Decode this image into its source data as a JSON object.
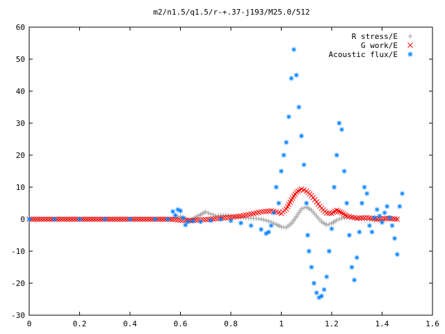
{
  "chart_data": {
    "type": "scatter",
    "title": "m2/n1.5/q1.5/r-+.37-j193/M25.0/512",
    "xlabel": "",
    "ylabel": "",
    "xlim": [
      0,
      1.6
    ],
    "ylim": [
      -30,
      60
    ],
    "xticks": [
      "0",
      "0.2",
      "0.4",
      "0.6",
      "0.8",
      "1",
      "1.2",
      "1.4",
      "1.6"
    ],
    "yticks": [
      "-30",
      "-20",
      "-10",
      "0",
      "10",
      "20",
      "30",
      "40",
      "50",
      "60"
    ],
    "grid": false,
    "legend_position": "top-right",
    "series": [
      {
        "name": "R stress/E",
        "marker": "plus",
        "color": "#a0a0a0",
        "points": [
          [
            0.0,
            0
          ],
          [
            0.1,
            0
          ],
          [
            0.2,
            0
          ],
          [
            0.3,
            0
          ],
          [
            0.4,
            0
          ],
          [
            0.5,
            0
          ],
          [
            0.56,
            0
          ],
          [
            0.58,
            0.5
          ],
          [
            0.6,
            0.9
          ],
          [
            0.62,
            0.3
          ],
          [
            0.64,
            -0.4
          ],
          [
            0.66,
            0.6
          ],
          [
            0.68,
            1.4
          ],
          [
            0.7,
            2.3
          ],
          [
            0.72,
            1.6
          ],
          [
            0.74,
            1.1
          ],
          [
            0.76,
            1.2
          ],
          [
            0.78,
            1.3
          ],
          [
            0.8,
            1.1
          ],
          [
            0.82,
            0.8
          ],
          [
            0.84,
            0.6
          ],
          [
            0.86,
            0.4
          ],
          [
            0.88,
            0.3
          ],
          [
            0.9,
            0.2
          ],
          [
            0.92,
            0
          ],
          [
            0.94,
            -0.4
          ],
          [
            0.96,
            -0.9
          ],
          [
            0.98,
            -1.6
          ],
          [
            1.0,
            -2.4
          ],
          [
            1.02,
            -2.6
          ],
          [
            1.04,
            -1.4
          ],
          [
            1.06,
            0.8
          ],
          [
            1.08,
            3.2
          ],
          [
            1.1,
            3.8
          ],
          [
            1.12,
            2.8
          ],
          [
            1.14,
            1.0
          ],
          [
            1.16,
            -0.8
          ],
          [
            1.18,
            -1.8
          ],
          [
            1.2,
            -1.3
          ],
          [
            1.22,
            -0.3
          ],
          [
            1.24,
            0.3
          ],
          [
            1.26,
            0.6
          ],
          [
            1.28,
            0.5
          ],
          [
            1.3,
            0.3
          ],
          [
            1.34,
            0
          ],
          [
            1.38,
            -0.3
          ],
          [
            1.42,
            0
          ],
          [
            1.46,
            0
          ]
        ]
      },
      {
        "name": "G work/E",
        "marker": "cross",
        "color": "#ff0000",
        "points": [
          [
            0.0,
            0
          ],
          [
            0.1,
            0
          ],
          [
            0.2,
            0
          ],
          [
            0.3,
            0
          ],
          [
            0.4,
            0
          ],
          [
            0.5,
            0
          ],
          [
            0.56,
            0
          ],
          [
            0.6,
            -0.3
          ],
          [
            0.64,
            -0.4
          ],
          [
            0.68,
            -0.2
          ],
          [
            0.72,
            0
          ],
          [
            0.76,
            0.3
          ],
          [
            0.8,
            0.6
          ],
          [
            0.84,
            1.0
          ],
          [
            0.88,
            1.6
          ],
          [
            0.92,
            2.3
          ],
          [
            0.96,
            2.6
          ],
          [
            0.98,
            2.3
          ],
          [
            1.0,
            1.8
          ],
          [
            1.02,
            3.2
          ],
          [
            1.04,
            6.0
          ],
          [
            1.06,
            8.4
          ],
          [
            1.08,
            9.4
          ],
          [
            1.1,
            8.8
          ],
          [
            1.12,
            7.4
          ],
          [
            1.14,
            5.4
          ],
          [
            1.16,
            3.4
          ],
          [
            1.18,
            1.9
          ],
          [
            1.2,
            1.8
          ],
          [
            1.22,
            2.8
          ],
          [
            1.24,
            2.0
          ],
          [
            1.26,
            1.0
          ],
          [
            1.3,
            0.3
          ],
          [
            1.34,
            0.5
          ],
          [
            1.38,
            0
          ],
          [
            1.42,
            0.3
          ],
          [
            1.46,
            0
          ]
        ]
      },
      {
        "name": "Acoustic flux/E",
        "marker": "star",
        "color": "#0080ff",
        "points": [
          [
            0.0,
            0
          ],
          [
            0.1,
            0
          ],
          [
            0.2,
            0
          ],
          [
            0.3,
            0
          ],
          [
            0.4,
            0
          ],
          [
            0.5,
            0
          ],
          [
            0.55,
            0
          ],
          [
            0.57,
            2.4
          ],
          [
            0.58,
            1.2
          ],
          [
            0.59,
            3.0
          ],
          [
            0.6,
            2.6
          ],
          [
            0.61,
            0.4
          ],
          [
            0.62,
            -1.8
          ],
          [
            0.63,
            -0.8
          ],
          [
            0.65,
            -0.6
          ],
          [
            0.68,
            -0.8
          ],
          [
            0.72,
            -0.4
          ],
          [
            0.76,
            0
          ],
          [
            0.8,
            -0.5
          ],
          [
            0.84,
            -1.2
          ],
          [
            0.88,
            -2.0
          ],
          [
            0.92,
            -3.2
          ],
          [
            0.94,
            -4.5
          ],
          [
            0.95,
            -4.0
          ],
          [
            0.96,
            -2.0
          ],
          [
            0.97,
            2.0
          ],
          [
            0.98,
            10.0
          ],
          [
            0.99,
            5.0
          ],
          [
            1.0,
            15.0
          ],
          [
            1.01,
            20.0
          ],
          [
            1.02,
            24.0
          ],
          [
            1.03,
            32.0
          ],
          [
            1.04,
            44.0
          ],
          [
            1.05,
            53.0
          ],
          [
            1.06,
            45.0
          ],
          [
            1.07,
            35.0
          ],
          [
            1.08,
            26.0
          ],
          [
            1.09,
            17.0
          ],
          [
            1.1,
            5.0
          ],
          [
            1.105,
            -5.0
          ],
          [
            1.11,
            -10.0
          ],
          [
            1.12,
            -15.0
          ],
          [
            1.13,
            -20.0
          ],
          [
            1.14,
            -23.0
          ],
          [
            1.15,
            -24.5
          ],
          [
            1.16,
            -24.0
          ],
          [
            1.17,
            -22.0
          ],
          [
            1.18,
            -18.0
          ],
          [
            1.19,
            -10.0
          ],
          [
            1.2,
            -3.0
          ],
          [
            1.21,
            10.0
          ],
          [
            1.22,
            20.0
          ],
          [
            1.23,
            30.0
          ],
          [
            1.24,
            28.0
          ],
          [
            1.25,
            15.0
          ],
          [
            1.26,
            5.0
          ],
          [
            1.27,
            -5.0
          ],
          [
            1.28,
            -15.0
          ],
          [
            1.29,
            -19.0
          ],
          [
            1.3,
            -12.0
          ],
          [
            1.31,
            -4.0
          ],
          [
            1.32,
            5.0
          ],
          [
            1.33,
            10.0
          ],
          [
            1.34,
            8.0
          ],
          [
            1.35,
            -2.0
          ],
          [
            1.36,
            -4.0
          ],
          [
            1.37,
            0.5
          ],
          [
            1.38,
            3.0
          ],
          [
            1.39,
            1.0
          ],
          [
            1.4,
            -1.0
          ],
          [
            1.41,
            2.0
          ],
          [
            1.42,
            4.0
          ],
          [
            1.43,
            0.5
          ],
          [
            1.44,
            -2.0
          ],
          [
            1.45,
            -6.0
          ],
          [
            1.46,
            -11.0
          ],
          [
            1.47,
            4.0
          ],
          [
            1.48,
            8.0
          ]
        ]
      }
    ]
  }
}
